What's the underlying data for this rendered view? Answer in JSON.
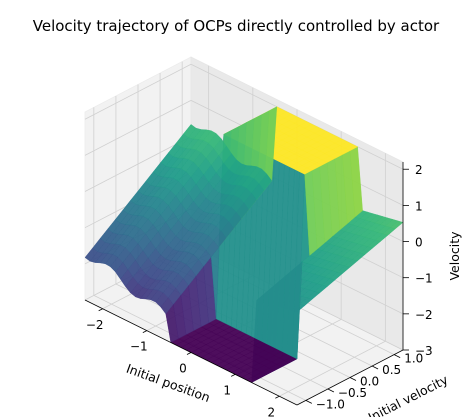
{
  "chart_data": {
    "type": "surface3d",
    "title": "Velocity trajectory of OCPs directly controlled by actor",
    "xlabel": "Initial position",
    "ylabel": "Initial velocity",
    "zlabel": "Velocity",
    "xlim": [
      -2.4,
      2.4
    ],
    "ylim": [
      -1.2,
      1.2
    ],
    "zlim": [
      -3,
      2.2
    ],
    "xticks": [
      -2,
      -1,
      0,
      1,
      2
    ],
    "xtick_labels": [
      "−2",
      "−1",
      "0",
      "1",
      "2"
    ],
    "yticks": [
      -1.0,
      -0.5,
      0.0,
      0.5,
      1.0
    ],
    "ytick_labels": [
      "−1.0",
      "−0.5",
      "0.0",
      "0.5",
      "1.0"
    ],
    "zticks": [
      -3,
      -2,
      -1,
      0,
      1,
      2
    ],
    "ztick_labels": [
      "−3",
      "−2",
      "−1",
      "0",
      "1",
      "2"
    ],
    "colormap": "viridis",
    "grid": true,
    "surface": {
      "x_range": [
        -2.4,
        2.4
      ],
      "y_range": [
        -1.2,
        1.2
      ],
      "z_range_observed": [
        -3,
        2
      ],
      "discontinuity_x_approx": [
        -0.5,
        1.4
      ]
    }
  }
}
